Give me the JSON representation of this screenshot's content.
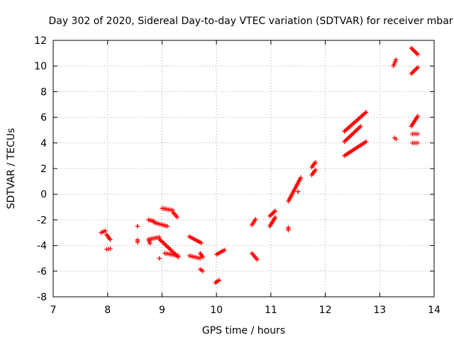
{
  "chart_data": {
    "type": "scatter",
    "title": "Day 302 of 2020, Sidereal Day-to-day VTEC variation (SDTVAR) for receiver mbar",
    "xlabel": "GPS time / hours",
    "ylabel": "SDTVAR / TECUs",
    "xlim": [
      7,
      14
    ],
    "ylim": [
      -8,
      12
    ],
    "xticks": [
      "7",
      "8",
      "9",
      "10",
      "11",
      "12",
      "13",
      "14"
    ],
    "yticks": [
      "-8",
      "-6",
      "-4",
      "-2",
      "0",
      "2",
      "4",
      "6",
      "8",
      "10",
      "12"
    ],
    "grid": true,
    "marker": "plus",
    "color": "#ff0000",
    "segments": [
      [
        7.88,
        -3.0,
        7.96,
        -2.85
      ],
      [
        7.98,
        -3.15,
        8.05,
        -3.55
      ],
      [
        7.98,
        -4.3,
        8.05,
        -4.25
      ],
      [
        8.55,
        -2.5,
        8.55,
        -2.5
      ],
      [
        8.55,
        -3.55,
        8.55,
        -3.75
      ],
      [
        8.75,
        -3.5,
        8.78,
        -3.85
      ],
      [
        8.75,
        -2.0,
        8.85,
        -2.1
      ],
      [
        8.85,
        -2.2,
        9.1,
        -2.5
      ],
      [
        8.78,
        -3.5,
        8.95,
        -3.35
      ],
      [
        8.95,
        -3.5,
        9.3,
        -4.9
      ],
      [
        8.95,
        -5.0,
        8.95,
        -5.0
      ],
      [
        9.05,
        -4.6,
        9.3,
        -4.8
      ],
      [
        9.0,
        -1.1,
        9.2,
        -1.25
      ],
      [
        9.2,
        -1.4,
        9.28,
        -1.8
      ],
      [
        9.5,
        -3.3,
        9.72,
        -3.8
      ],
      [
        9.5,
        -4.8,
        9.7,
        -5.0
      ],
      [
        9.7,
        -4.6,
        9.75,
        -4.9
      ],
      [
        9.7,
        -5.85,
        9.75,
        -6.0
      ],
      [
        9.98,
        -6.9,
        10.05,
        -6.7
      ],
      [
        10.0,
        -4.7,
        10.15,
        -4.35
      ],
      [
        10.65,
        -4.6,
        10.75,
        -5.1
      ],
      [
        10.65,
        -2.4,
        10.72,
        -1.95
      ],
      [
        10.98,
        -2.5,
        11.08,
        -1.8
      ],
      [
        10.98,
        -1.7,
        11.08,
        -1.3
      ],
      [
        11.32,
        -2.6,
        11.32,
        -2.8
      ],
      [
        11.32,
        -0.55,
        11.55,
        1.3
      ],
      [
        11.5,
        0.2,
        11.5,
        0.2
      ],
      [
        11.75,
        1.5,
        11.82,
        1.9
      ],
      [
        11.75,
        2.1,
        11.82,
        2.5
      ],
      [
        12.35,
        3.0,
        12.75,
        4.1
      ],
      [
        12.35,
        4.1,
        12.65,
        5.3
      ],
      [
        12.35,
        4.9,
        12.75,
        6.4
      ],
      [
        13.25,
        10.0,
        13.3,
        10.5
      ],
      [
        13.27,
        4.4,
        13.3,
        4.3
      ],
      [
        13.58,
        11.4,
        13.7,
        10.9
      ],
      [
        13.58,
        9.4,
        13.7,
        9.9
      ],
      [
        13.58,
        5.3,
        13.7,
        6.1
      ],
      [
        13.6,
        4.7,
        13.7,
        4.7
      ],
      [
        13.6,
        4.0,
        13.7,
        4.0
      ]
    ]
  }
}
